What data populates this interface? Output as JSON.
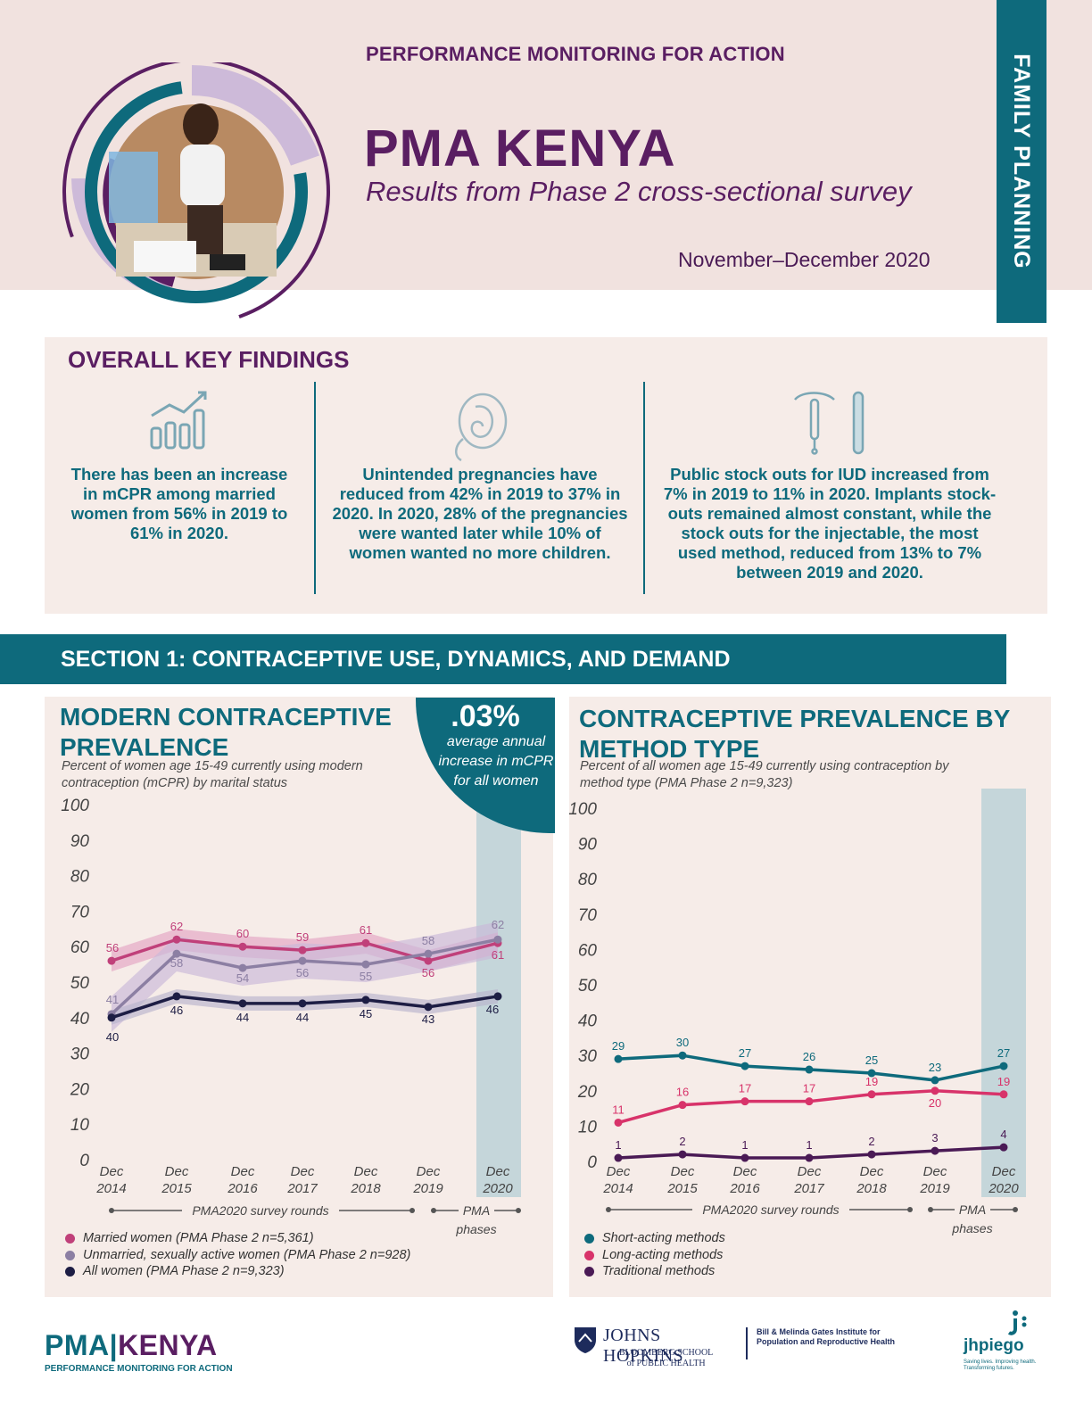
{
  "header": {
    "kicker": "PERFORMANCE MONITORING FOR ACTION",
    "title": "PMA KENYA",
    "subtitle": "Results from Phase 2 cross-sectional survey",
    "date": "November–December 2020",
    "side_tab": "FAMILY PLANNING"
  },
  "findings": {
    "title": "OVERALL KEY FINDINGS",
    "items": [
      {
        "icon": "bar-chart-growth-icon",
        "text": "There has been an increase in mCPR among married women from 56% in 2019 to 61% in 2020."
      },
      {
        "icon": "fetus-icon",
        "text": "Unintended pregnancies have reduced from 42% in 2019 to 37% in 2020. In 2020, 28% of the pregnancies were wanted later while 10% of women wanted no more children."
      },
      {
        "icon": "iud-implant-icon",
        "text": "Public stock outs for IUD increased from 7% in 2019 to 11% in 2020. Implants stock-outs remained almost constant, while the stock outs for the injectable, the most used method, reduced from 13% to 7% between 2019 and 2020."
      }
    ]
  },
  "section": {
    "title": "SECTION 1: CONTRACEPTIVE USE, DYNAMICS, AND DEMAND"
  },
  "left_panel": {
    "title_line1": "MODERN CONTRACEPTIVE",
    "title_line2": "PREVALENCE",
    "subtitle_line1": "Percent of women age 15-49 currently using modern",
    "subtitle_line2": "contraception (mCPR) by marital status",
    "callout_big": ".03%",
    "callout_small": "average annual increase in mCPR for all women",
    "rounds_label": "PMA2020 survey rounds",
    "phases_label_1": "PMA",
    "phases_label_2": "phases"
  },
  "right_panel": {
    "title_line1": "CONTRACEPTIVE PREVALENCE BY",
    "title_line2": "METHOD TYPE",
    "subtitle_line1": "Percent of all women age 15-49 currently using contraception by",
    "subtitle_line2": "method type (PMA Phase 2 n=9,323)",
    "rounds_label": "PMA2020 survey rounds",
    "phases_label_1": "PMA",
    "phases_label_2": "phases"
  },
  "chart_data": [
    {
      "type": "line",
      "title": "MODERN CONTRACEPTIVE PREVALENCE",
      "subtitle": "Percent of women age 15-49 currently using modern contraception (mCPR) by marital status",
      "categories": [
        "Dec 2014",
        "Dec 2015",
        "Dec 2016",
        "Dec 2017",
        "Dec 2018",
        "Dec 2019",
        "Dec 2020"
      ],
      "ylim": [
        0,
        100
      ],
      "yticks": [
        0,
        10,
        20,
        30,
        40,
        50,
        60,
        70,
        80,
        90,
        100
      ],
      "grid": false,
      "legend_position": "bottom-left",
      "highlight_category": "Dec 2020",
      "series": [
        {
          "name": "Married women (PMA Phase 2 n=5,361)",
          "values": [
            56,
            62,
            60,
            59,
            61,
            56,
            61
          ],
          "color": "#c0407a",
          "band_color": "#e3a4c3",
          "band": 3
        },
        {
          "name": "Unmarried, sexually active women (PMA Phase 2 n=928)",
          "values": [
            41,
            58,
            54,
            56,
            55,
            58,
            62
          ],
          "color": "#8c7fa3",
          "band_color": "#c9b8d9",
          "band": 5
        },
        {
          "name": "All women (PMA Phase 2 n=9,323)",
          "values": [
            40,
            46,
            44,
            44,
            45,
            43,
            46
          ],
          "color": "#1d1d44",
          "band_color": "#b9b4cc",
          "band": 2
        }
      ]
    },
    {
      "type": "line",
      "title": "CONTRACEPTIVE PREVALENCE BY METHOD TYPE",
      "subtitle": "Percent of all women age 15-49 currently using contraception by method type (PMA Phase 2 n=9,323)",
      "categories": [
        "Dec 2014",
        "Dec 2015",
        "Dec 2016",
        "Dec 2017",
        "Dec 2018",
        "Dec 2019",
        "Dec 2020"
      ],
      "ylim": [
        0,
        100
      ],
      "yticks": [
        0,
        10,
        20,
        30,
        40,
        50,
        60,
        70,
        80,
        90,
        100
      ],
      "grid": false,
      "legend_position": "bottom-left",
      "highlight_category": "Dec 2020",
      "series": [
        {
          "name": "Short-acting methods",
          "values": [
            29,
            30,
            27,
            26,
            25,
            23,
            27
          ],
          "color": "#0e6a7c"
        },
        {
          "name": "Long-acting methods",
          "values": [
            11,
            16,
            17,
            17,
            19,
            20,
            19
          ],
          "color": "#d8336a"
        },
        {
          "name": "Traditional methods",
          "values": [
            1,
            2,
            1,
            1,
            2,
            3,
            4
          ],
          "color": "#4a1a55"
        }
      ]
    }
  ],
  "footer": {
    "pma": "PMA",
    "kenya": "KENYA",
    "tagline": "PERFORMANCE MONITORING FOR ACTION",
    "jh_name": "JOHNS HOPKINS",
    "jh_school_1": "BLOOMBERG SCHOOL",
    "jh_school_2": "of PUBLIC HEALTH",
    "gates_1": "Bill & Melinda Gates Institute for",
    "gates_2": "Population and Reproductive Health",
    "jhpiego": "jhpiego",
    "jhpiego_tag": "Saving lives. Improving health. Transforming futures."
  },
  "colors": {
    "teal": "#0e6a7c",
    "plum": "#5a1e62",
    "header_bg": "#f1e2df",
    "panel_bg": "#f6ece8",
    "highlight": "#c5d6da"
  }
}
